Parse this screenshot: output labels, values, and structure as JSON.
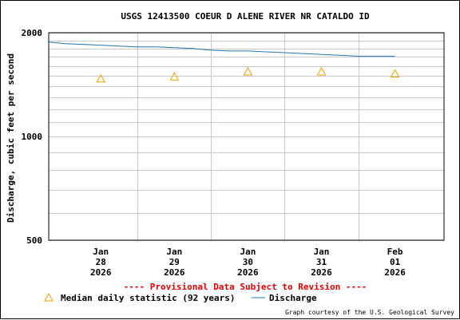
{
  "chart_data": {
    "type": "line",
    "title": "USGS 12413500 COEUR D ALENE RIVER NR CATALDO ID",
    "ylabel": "Discharge, cubic feet per second",
    "xlabel": "",
    "y_scale": "log",
    "ylim": [
      500,
      2000
    ],
    "y_ticks": [
      {
        "value": 500,
        "label": "500"
      },
      {
        "value": 1000,
        "label": "1000"
      },
      {
        "value": 2000,
        "label": "2000"
      }
    ],
    "y_minor_grid": [
      600,
      700,
      800,
      900,
      1100,
      1200,
      1300,
      1400,
      1500,
      1600,
      1700,
      1800,
      1900
    ],
    "x_domain": [
      "2026-01-27 19:00",
      "2026-02-02 04:00"
    ],
    "x_ticks": [
      {
        "date": "2026-01-28 12:00",
        "lines": [
          "Jan",
          "28",
          "2026"
        ]
      },
      {
        "date": "2026-01-29 12:00",
        "lines": [
          "Jan",
          "29",
          "2026"
        ]
      },
      {
        "date": "2026-01-30 12:00",
        "lines": [
          "Jan",
          "30",
          "2026"
        ]
      },
      {
        "date": "2026-01-31 12:00",
        "lines": [
          "Jan",
          "31",
          "2026"
        ]
      },
      {
        "date": "2026-02-01 12:00",
        "lines": [
          "Feb",
          "01",
          "2026"
        ]
      }
    ],
    "x_day_gridlines": [
      "2026-01-29 00:00",
      "2026-01-30 00:00",
      "2026-01-31 00:00",
      "2026-02-01 00:00"
    ],
    "grid": true,
    "series": [
      {
        "name": "Discharge",
        "kind": "line",
        "color": "#1f77b4",
        "points": [
          [
            "2026-01-27 19:00",
            1880
          ],
          [
            "2026-01-28 00:00",
            1860
          ],
          [
            "2026-01-28 06:00",
            1850
          ],
          [
            "2026-01-28 12:00",
            1840
          ],
          [
            "2026-01-28 18:00",
            1830
          ],
          [
            "2026-01-29 00:00",
            1820
          ],
          [
            "2026-01-29 06:00",
            1820
          ],
          [
            "2026-01-29 12:00",
            1810
          ],
          [
            "2026-01-29 18:00",
            1800
          ],
          [
            "2026-01-30 00:00",
            1780
          ],
          [
            "2026-01-30 06:00",
            1770
          ],
          [
            "2026-01-30 12:00",
            1770
          ],
          [
            "2026-01-30 18:00",
            1760
          ],
          [
            "2026-01-31 00:00",
            1750
          ],
          [
            "2026-01-31 06:00",
            1740
          ],
          [
            "2026-01-31 12:00",
            1730
          ],
          [
            "2026-01-31 18:00",
            1720
          ],
          [
            "2026-02-01 00:00",
            1710
          ],
          [
            "2026-02-01 06:00",
            1710
          ],
          [
            "2026-02-01 12:00",
            1710
          ]
        ]
      },
      {
        "name": "Median daily statistic (92 years)",
        "kind": "marker",
        "marker": "triangle",
        "color": "#e8a000",
        "points": [
          [
            "2026-01-28 12:00",
            1470
          ],
          [
            "2026-01-29 12:00",
            1490
          ],
          [
            "2026-01-30 12:00",
            1540
          ],
          [
            "2026-01-31 12:00",
            1540
          ],
          [
            "2026-02-01 12:00",
            1520
          ]
        ]
      }
    ],
    "legend": [
      {
        "name": "Median daily statistic (92 years)",
        "symbol": "triangle",
        "color": "#e8a000"
      },
      {
        "name": "Discharge",
        "symbol": "line",
        "color": "#1f77b4"
      }
    ],
    "legend_placement": "bottom",
    "notice": "---- Provisional Data Subject to Revision ----",
    "notice_color": "#e00000",
    "credit": "Graph courtesy of the U.S. Geological Survey"
  }
}
